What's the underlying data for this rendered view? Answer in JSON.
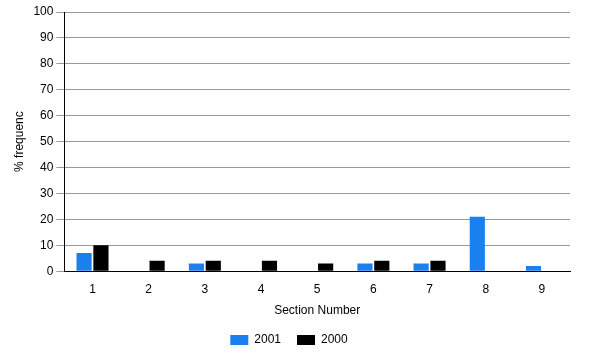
{
  "chart_data": {
    "type": "bar",
    "x_label": "Section Number",
    "y_label": "% frequenc",
    "categories": [
      "1",
      "2",
      "3",
      "4",
      "5",
      "6",
      "7",
      "8",
      "9"
    ],
    "series": [
      {
        "name": "2001",
        "color": "#1a80f0",
        "values": [
          7,
          0,
          3,
          0,
          0,
          3,
          3,
          21,
          2
        ]
      },
      {
        "name": "2000",
        "color": "#000000",
        "values": [
          10,
          4,
          4,
          4,
          3,
          4,
          4,
          0,
          0
        ]
      }
    ],
    "ylim": [
      0,
      100
    ],
    "yticks": [
      0,
      10,
      20,
      30,
      40,
      50,
      60,
      70,
      80,
      90,
      100
    ],
    "grid": true,
    "legend": "bottom"
  }
}
